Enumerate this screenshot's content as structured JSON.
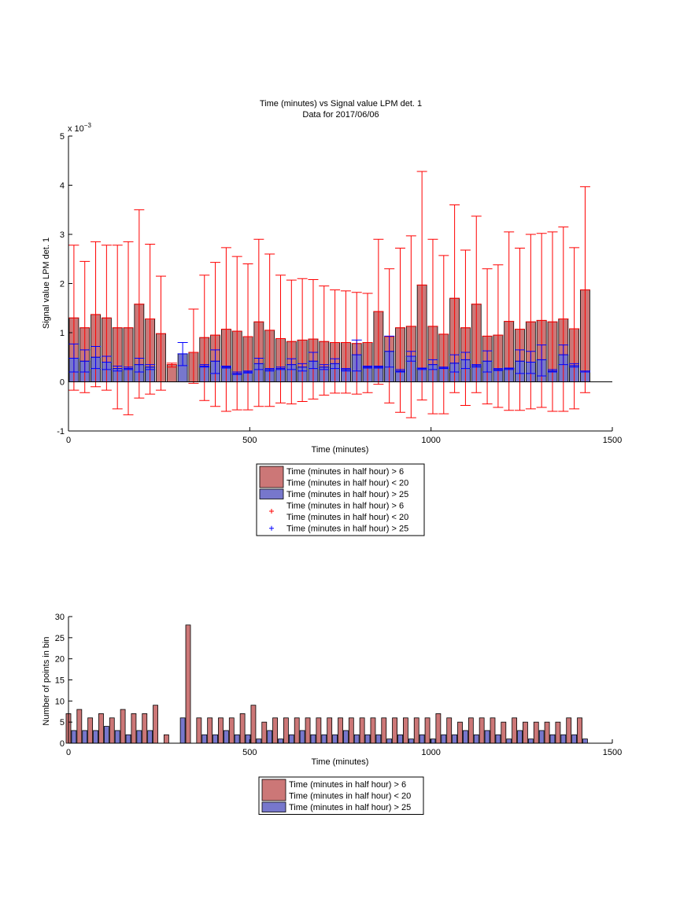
{
  "chart_data": [
    {
      "type": "bar",
      "title": "Time (minutes) vs Signal value LPM det. 1",
      "subtitle": "Data for 2017/06/06",
      "xlabel": "Time (minutes)",
      "ylabel": "Signal value LPM det. 1",
      "xlim": [
        0,
        1500
      ],
      "ylim": [
        -1,
        5
      ],
      "y_multiplier": "x 10",
      "y_multiplier_exp": "−3",
      "x_ticks": [
        0,
        500,
        1000,
        1500
      ],
      "y_ticks": [
        -1,
        0,
        1,
        2,
        3,
        4,
        5
      ],
      "grid": false,
      "legend_position": "below",
      "legend": [
        {
          "marker": "bar",
          "color": "#cc7777",
          "lines": [
            "Time (minutes in half hour) > 6",
            "Time (minutes in half hour) < 20"
          ]
        },
        {
          "marker": "bar",
          "color": "#7777cc",
          "lines": [
            "Time (minutes in half hour) > 25"
          ]
        },
        {
          "marker": "plus",
          "color": "#ff0000",
          "lines": [
            "Time (minutes in half hour) > 6",
            "Time (minutes in half hour) < 20"
          ]
        },
        {
          "marker": "plus",
          "color": "#0000ff",
          "lines": [
            "Time (minutes in half hour) > 25"
          ]
        }
      ],
      "series": [
        {
          "color": "#cc7777",
          "errorbar_color": "#ff0000",
          "x": [
            15,
            45,
            75,
            105,
            135,
            165,
            195,
            225,
            255,
            285,
            345,
            375,
            405,
            435,
            465,
            495,
            525,
            555,
            585,
            615,
            645,
            675,
            705,
            735,
            765,
            795,
            825,
            855,
            885,
            915,
            945,
            975,
            1005,
            1035,
            1065,
            1095,
            1125,
            1155,
            1185,
            1215,
            1245,
            1275,
            1305,
            1335,
            1365,
            1395,
            1425
          ],
          "values": [
            1.3,
            1.1,
            1.37,
            1.3,
            1.1,
            1.1,
            1.58,
            1.28,
            0.98,
            0.35,
            0.6,
            0.9,
            0.95,
            1.07,
            1.03,
            0.92,
            1.22,
            1.05,
            0.88,
            0.82,
            0.85,
            0.87,
            0.82,
            0.8,
            0.8,
            0.78,
            0.8,
            1.43,
            0.92,
            1.1,
            1.13,
            1.97,
            1.13,
            0.97,
            1.7,
            1.1,
            1.58,
            0.93,
            0.95,
            1.23,
            1.07,
            1.22,
            1.25,
            1.22,
            1.28,
            1.08,
            1.87
          ],
          "err_low": [
            -0.17,
            -0.22,
            -0.1,
            -0.17,
            -0.55,
            -0.67,
            -0.33,
            -0.25,
            -0.17,
            0.3,
            -0.03,
            -0.38,
            -0.5,
            -0.6,
            -0.57,
            -0.57,
            -0.5,
            -0.5,
            -0.43,
            -0.45,
            -0.4,
            -0.35,
            -0.27,
            -0.23,
            -0.23,
            -0.25,
            -0.22,
            -0.05,
            -0.43,
            -0.62,
            -0.73,
            -0.37,
            -0.65,
            -0.65,
            -0.22,
            -0.48,
            -0.22,
            -0.45,
            -0.52,
            -0.58,
            -0.58,
            -0.55,
            -0.52,
            -0.6,
            -0.6,
            -0.55,
            -0.22
          ],
          "err_high": [
            2.78,
            2.45,
            2.85,
            2.78,
            2.78,
            2.85,
            3.5,
            2.8,
            2.15,
            0.38,
            1.48,
            2.17,
            2.43,
            2.73,
            2.55,
            2.4,
            2.9,
            2.6,
            2.17,
            2.07,
            2.1,
            2.08,
            1.95,
            1.87,
            1.85,
            1.82,
            1.8,
            2.9,
            2.3,
            2.72,
            2.97,
            4.28,
            2.9,
            2.57,
            3.6,
            2.68,
            3.37,
            2.3,
            2.38,
            3.05,
            2.72,
            3.0,
            3.02,
            3.05,
            3.15,
            2.73,
            3.97
          ]
        },
        {
          "color": "#7777cc",
          "errorbar_color": "#0000ff",
          "x": [
            15,
            45,
            75,
            105,
            135,
            165,
            195,
            225,
            315,
            375,
            405,
            435,
            465,
            495,
            525,
            555,
            585,
            615,
            645,
            675,
            705,
            735,
            765,
            795,
            825,
            855,
            885,
            915,
            945,
            975,
            1005,
            1035,
            1065,
            1095,
            1125,
            1155,
            1185,
            1215,
            1245,
            1275,
            1305,
            1335,
            1365,
            1395,
            1425
          ],
          "values": [
            0.48,
            0.42,
            0.5,
            0.4,
            0.27,
            0.27,
            0.35,
            0.3,
            0.57,
            0.32,
            0.42,
            0.3,
            0.17,
            0.2,
            0.37,
            0.25,
            0.27,
            0.35,
            0.3,
            0.42,
            0.3,
            0.37,
            0.25,
            0.55,
            0.3,
            0.3,
            0.62,
            0.22,
            0.52,
            0.27,
            0.35,
            0.28,
            0.38,
            0.45,
            0.33,
            0.42,
            0.25,
            0.27,
            0.42,
            0.4,
            0.45,
            0.22,
            0.55,
            0.33,
            0.2
          ],
          "err_low": [
            0.2,
            0.2,
            0.27,
            0.25,
            0.22,
            0.25,
            0.2,
            0.25,
            0.33,
            0.3,
            0.17,
            0.28,
            0.15,
            0.18,
            0.25,
            0.22,
            0.25,
            0.25,
            0.22,
            0.27,
            0.25,
            0.27,
            0.22,
            0.22,
            0.28,
            0.28,
            0.3,
            0.2,
            0.42,
            0.25,
            0.25,
            0.27,
            0.2,
            0.27,
            0.3,
            0.2,
            0.23,
            0.25,
            0.17,
            0.17,
            0.12,
            0.2,
            0.35,
            0.3,
            0.2
          ],
          "err_high": [
            0.77,
            0.65,
            0.72,
            0.52,
            0.32,
            0.3,
            0.48,
            0.35,
            0.8,
            0.35,
            0.65,
            0.32,
            0.2,
            0.22,
            0.48,
            0.27,
            0.3,
            0.47,
            0.37,
            0.6,
            0.35,
            0.47,
            0.27,
            0.85,
            0.32,
            0.32,
            0.93,
            0.25,
            0.62,
            0.28,
            0.45,
            0.3,
            0.55,
            0.6,
            0.35,
            0.63,
            0.27,
            0.28,
            0.65,
            0.62,
            0.75,
            0.25,
            0.75,
            0.37,
            0.22
          ]
        }
      ]
    },
    {
      "type": "bar",
      "title": "",
      "xlabel": "Time (minutes)",
      "ylabel": "Number of points in bin",
      "xlim": [
        0,
        1500
      ],
      "ylim": [
        0,
        30
      ],
      "x_ticks": [
        0,
        500,
        1000,
        1500
      ],
      "y_ticks": [
        0,
        5,
        10,
        15,
        20,
        25,
        30
      ],
      "grid": false,
      "legend_position": "below",
      "legend": [
        {
          "marker": "bar",
          "color": "#cc7777",
          "lines": [
            "Time (minutes in half hour) > 6",
            "Time (minutes in half hour) < 20"
          ]
        },
        {
          "marker": "bar",
          "color": "#7777cc",
          "lines": [
            "Time (minutes in half hour) > 25"
          ]
        }
      ],
      "series": [
        {
          "color": "#cc7777",
          "x": [
            0,
            30,
            60,
            90,
            120,
            150,
            180,
            210,
            240,
            270,
            330,
            360,
            390,
            420,
            450,
            480,
            510,
            540,
            570,
            600,
            630,
            660,
            690,
            720,
            750,
            780,
            810,
            840,
            870,
            900,
            930,
            960,
            990,
            1020,
            1050,
            1080,
            1110,
            1140,
            1170,
            1200,
            1230,
            1260,
            1290,
            1320,
            1350,
            1380,
            1410
          ],
          "values": [
            7,
            8,
            6,
            7,
            6,
            8,
            7,
            7,
            9,
            2,
            28,
            6,
            6,
            6,
            6,
            7,
            9,
            5,
            6,
            6,
            6,
            6,
            6,
            6,
            6,
            6,
            6,
            6,
            6,
            6,
            6,
            6,
            6,
            7,
            6,
            5,
            6,
            6,
            6,
            5,
            6,
            5,
            5,
            5,
            5,
            6,
            6
          ]
        },
        {
          "color": "#7777cc",
          "x": [
            15,
            45,
            75,
            105,
            135,
            165,
            195,
            225,
            315,
            375,
            405,
            435,
            465,
            495,
            525,
            555,
            585,
            615,
            645,
            675,
            705,
            735,
            765,
            795,
            825,
            855,
            885,
            915,
            945,
            975,
            1005,
            1035,
            1065,
            1095,
            1125,
            1155,
            1185,
            1215,
            1245,
            1275,
            1305,
            1335,
            1365,
            1395,
            1425
          ],
          "values": [
            3,
            3,
            3,
            4,
            3,
            2,
            3,
            3,
            6,
            2,
            2,
            3,
            2,
            2,
            1,
            3,
            1,
            2,
            3,
            2,
            2,
            2,
            3,
            2,
            2,
            2,
            1,
            2,
            1,
            2,
            1,
            2,
            2,
            3,
            2,
            3,
            2,
            1,
            3,
            1,
            3,
            2,
            2,
            2,
            1
          ]
        }
      ]
    }
  ]
}
